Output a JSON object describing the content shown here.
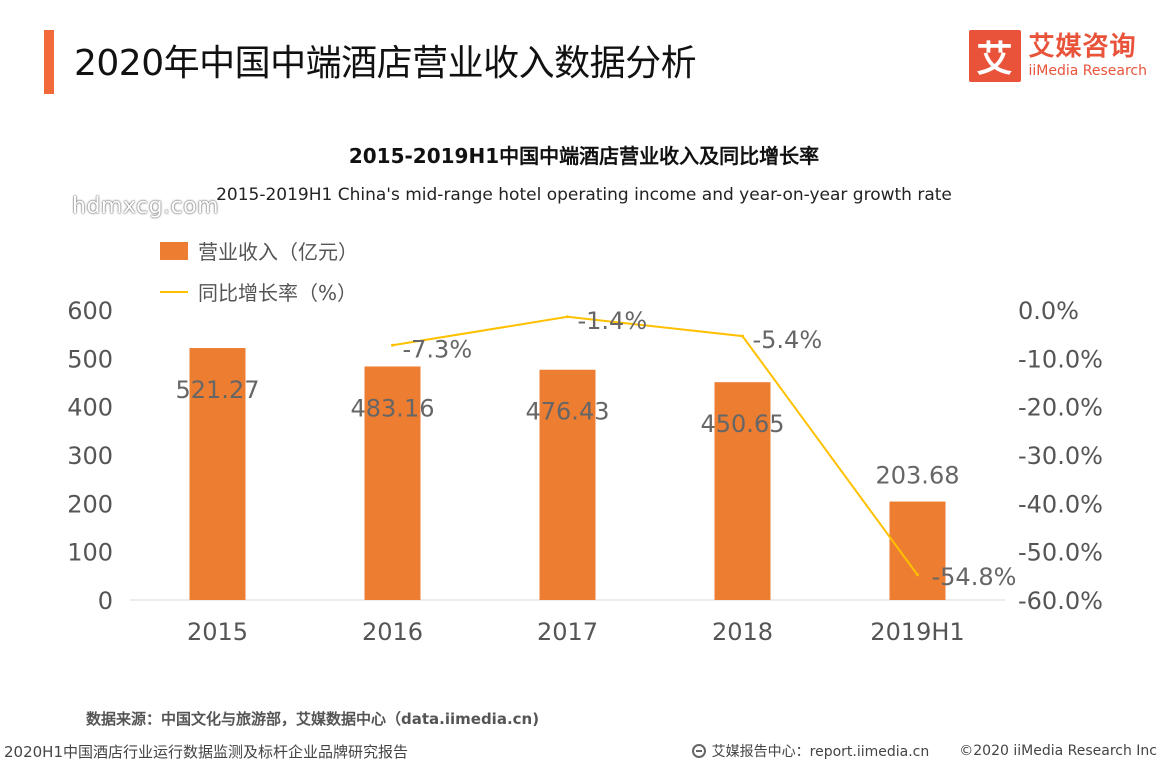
{
  "page": {
    "title": "2020年中国中端酒店营业收入数据分析",
    "logo_mark": "艾",
    "logo_cn": "艾媒咨询",
    "logo_en": "iiMedia Research",
    "watermark": "hdmxcg.com",
    "source": "数据来源：中国文化与旅游部，艾媒数据中心（data.iimedia.cn)",
    "footer_left": "2020H1中国酒店行业运行数据监测及标杆企业品牌研究报告",
    "footer_report": "艾媒报告中心：report.iimedia.cn",
    "footer_copyright": "©2020  iiMedia Research  Inc",
    "accent_color": "#f26a3a"
  },
  "chart_data": {
    "type": "bar",
    "title": "2015-2019H1中国中端酒店营业收入及同比增长率",
    "subtitle": "2015-2019H1 China's mid-range hotel operating income and year-on-year growth rate",
    "categories": [
      "2015",
      "2016",
      "2017",
      "2018",
      "2019H1"
    ],
    "series": [
      {
        "name": "营业收入（亿元）",
        "type": "bar",
        "axis": "left",
        "color": "#ed7d31",
        "values": [
          521.27,
          483.16,
          476.43,
          450.65,
          203.68
        ],
        "labels": [
          "521.27",
          "483.16",
          "476.43",
          "450.65",
          "203.68"
        ]
      },
      {
        "name": "同比增长率（%）",
        "type": "line",
        "axis": "right",
        "color": "#ffc000",
        "values": [
          null,
          -7.3,
          -1.4,
          -5.4,
          -54.8
        ],
        "labels": [
          "",
          "-7.3%",
          "-1.4%",
          "-5.4%",
          "-54.8%"
        ]
      }
    ],
    "y_left": {
      "min": 0,
      "max": 600,
      "ticks": [
        "0",
        "100",
        "200",
        "300",
        "400",
        "500",
        "600"
      ]
    },
    "y_right": {
      "min": -60,
      "max": 0,
      "ticks": [
        "-60.0%",
        "-50.0%",
        "-40.0%",
        "-30.0%",
        "-20.0%",
        "-10.0%",
        "0.0%"
      ]
    },
    "grid": false,
    "legend_position": "top-left"
  }
}
